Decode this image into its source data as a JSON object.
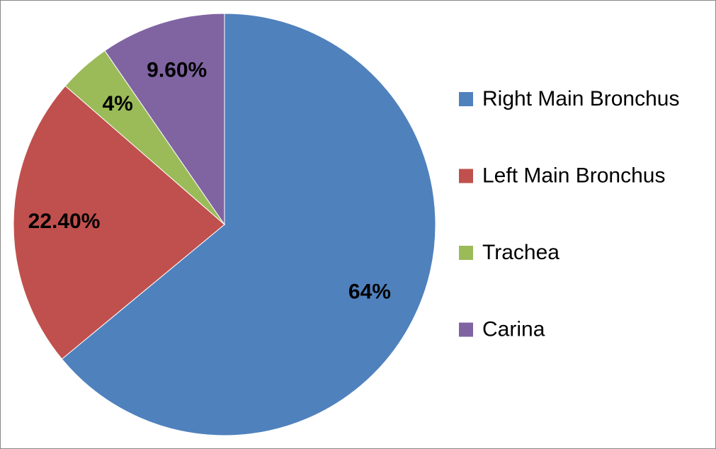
{
  "chart_data": {
    "type": "pie",
    "categories": [
      "Right Main Bronchus",
      "Left Main Bronchus",
      "Trachea",
      "Carina"
    ],
    "values": [
      64,
      22.4,
      4,
      9.6
    ],
    "value_labels": [
      "64%",
      "22.40%",
      "4%",
      "9.60%"
    ],
    "colors": [
      "#4f81bd",
      "#c0504d",
      "#9bbb59",
      "#8064a2"
    ],
    "legend": "right"
  }
}
